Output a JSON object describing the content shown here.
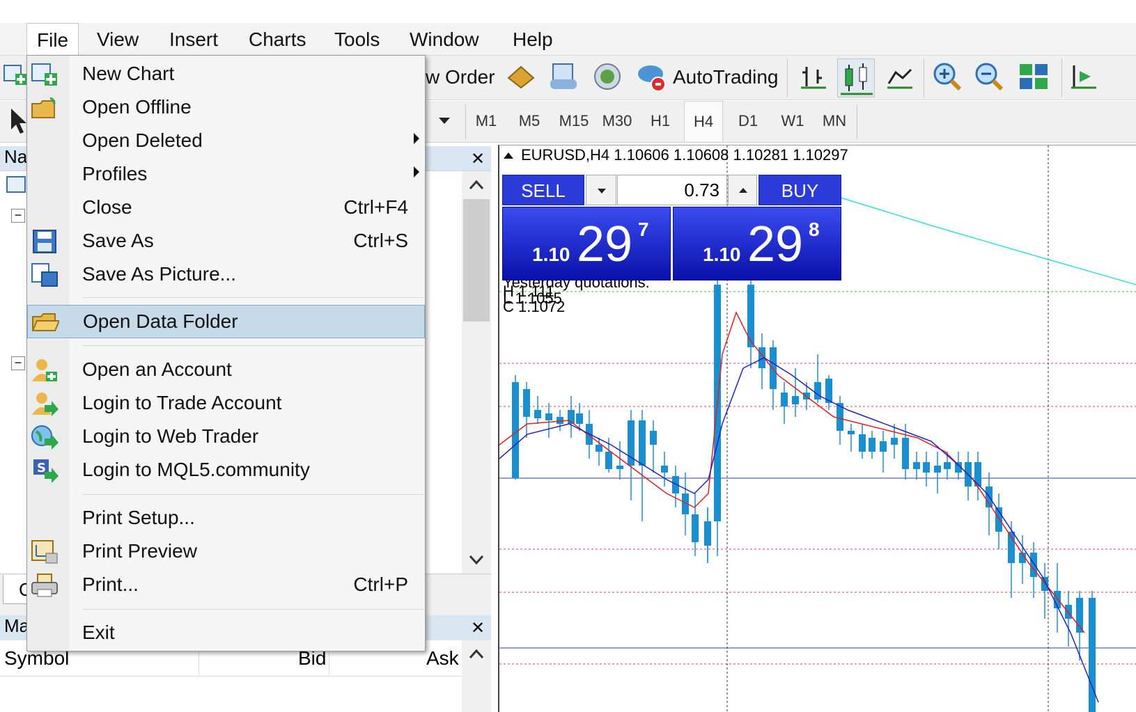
{
  "menubar": {
    "items": [
      "File",
      "View",
      "Insert",
      "Charts",
      "Tools",
      "Window",
      "Help"
    ]
  },
  "toolbar": {
    "new_order": "w Order",
    "autotrading": "AutoTrading"
  },
  "periods": [
    "M1",
    "M5",
    "M15",
    "M30",
    "H1",
    "H4",
    "D1",
    "W1",
    "MN"
  ],
  "active_period": "H4",
  "left_panel": {
    "navigator_title": "Na",
    "market_watch_title": "Ma",
    "columns": [
      "Symbol",
      "Bid",
      "Ask"
    ],
    "bottom_tab_letter": "C"
  },
  "file_menu": {
    "items": [
      {
        "label": "New Chart",
        "shortcut": "",
        "icon": "new-chart-icon"
      },
      {
        "label": "Open Offline",
        "shortcut": "",
        "icon": "open-folder-icon"
      },
      {
        "label": "Open Deleted",
        "shortcut": "",
        "submenu": true
      },
      {
        "label": "Profiles",
        "shortcut": "",
        "submenu": true
      },
      {
        "label": "Close",
        "shortcut": "Ctrl+F4"
      },
      {
        "label": "Save As",
        "shortcut": "Ctrl+S",
        "icon": "floppy-icon"
      },
      {
        "label": "Save As Picture...",
        "shortcut": "",
        "icon": "save-picture-icon"
      },
      {
        "label": "Open Data Folder",
        "shortcut": "",
        "icon": "folder-icon",
        "highlighted": true
      },
      {
        "label": "Open an Account",
        "shortcut": "",
        "icon": "add-user-icon"
      },
      {
        "label": "Login to Trade Account",
        "shortcut": "",
        "icon": "login-user-icon"
      },
      {
        "label": "Login to Web Trader",
        "shortcut": "",
        "icon": "globe-icon"
      },
      {
        "label": "Login to MQL5.community",
        "shortcut": "",
        "icon": "mql5-icon"
      },
      {
        "label": "Print Setup...",
        "shortcut": ""
      },
      {
        "label": "Print Preview",
        "shortcut": "",
        "icon": "print-preview-icon"
      },
      {
        "label": "Print...",
        "shortcut": "Ctrl+P",
        "icon": "printer-icon"
      },
      {
        "label": "Exit",
        "shortcut": ""
      }
    ]
  },
  "chart": {
    "title": "EURUSD,H4  1.10606 1.10608 1.10281 1.10297",
    "yesterday": "Yesterday quotations:",
    "h_label": "H 1.111",
    "l_label": "L 1.1055",
    "c_label": "C 1.1072",
    "colors": {
      "bull": "#4cb848",
      "bear": "#1a8fd0",
      "ma_fast": "#e02020",
      "ma_slow": "#2020c0"
    }
  },
  "trade": {
    "sell": "SELL",
    "buy": "BUY",
    "volume": "0.73",
    "bid_prefix": "1.10",
    "bid_big": "29",
    "bid_sup": "7",
    "ask_prefix": "1.10",
    "ask_big": "29",
    "ask_sup": "8"
  }
}
